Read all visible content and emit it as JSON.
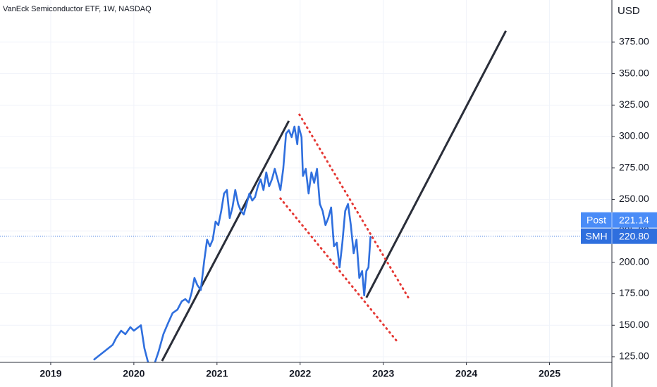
{
  "chart_data": {
    "type": "line",
    "title": "VanEck Semiconductor ETF, 1W, NASDAQ",
    "y_axis_label": "USD",
    "x": [
      2019.517,
      2019.746,
      2019.788,
      2019.847,
      2019.898,
      2019.958,
      2020.0,
      2020.085,
      2020.127,
      2020.169,
      2020.195,
      2020.254,
      2020.297,
      2020.356,
      2020.407,
      2020.466,
      2020.525,
      2020.576,
      2020.619,
      2020.661,
      2020.695,
      2020.729,
      2020.763,
      2020.805,
      2020.847,
      2020.881,
      2020.915,
      2020.949,
      2020.983,
      2021.017,
      2021.051,
      2021.085,
      2021.119,
      2021.153,
      2021.186,
      2021.22,
      2021.254,
      2021.288,
      2021.322,
      2021.356,
      2021.39,
      2021.424,
      2021.458,
      2021.492,
      2021.525,
      2021.559,
      2021.593,
      2021.627,
      2021.661,
      2021.695,
      2021.729,
      2021.763,
      2021.797,
      2021.831,
      2021.864,
      2021.898,
      2021.932,
      2021.966,
      2021.983,
      2022.017,
      2022.034,
      2022.068,
      2022.102,
      2022.136,
      2022.169,
      2022.203,
      2022.237,
      2022.271,
      2022.305,
      2022.339,
      2022.373,
      2022.407,
      2022.441,
      2022.475,
      2022.508,
      2022.542,
      2022.576,
      2022.61,
      2022.644,
      2022.678,
      2022.712,
      2022.746,
      2022.771,
      2022.797,
      2022.822,
      2022.847
    ],
    "series": [
      {
        "name": "SMH",
        "color": "#2f6fde",
        "values": [
          122.5,
          134.5,
          140.0,
          145.7,
          142.9,
          148.5,
          145.7,
          150.0,
          131.7,
          121.0,
          118.0,
          120.5,
          129.0,
          143.0,
          151.0,
          159.7,
          162.5,
          169.0,
          170.8,
          168.0,
          176.0,
          187.6,
          182.0,
          178.0,
          201.6,
          218.0,
          212.8,
          218.0,
          232.4,
          229.6,
          240.8,
          254.7,
          257.5,
          235.2,
          243.6,
          257.5,
          246.4,
          240.8,
          238.0,
          246.4,
          254.7,
          249.1,
          251.9,
          260.4,
          266.0,
          257.5,
          271.5,
          260.4,
          266.0,
          274.3,
          266.0,
          257.5,
          274.3,
          302.3,
          305.1,
          299.5,
          307.9,
          293.9,
          307.9,
          299.5,
          268.7,
          274.3,
          254.7,
          271.5,
          263.2,
          274.3,
          246.4,
          240.8,
          229.6,
          235.2,
          243.6,
          212.8,
          215.6,
          196.0,
          215.6,
          240.8,
          246.4,
          229.6,
          207.2,
          218.0,
          187.6,
          193.1,
          173.7,
          193.1,
          196.0,
          220.8
        ]
      }
    ],
    "drawings": [
      {
        "color": "#2a2e39",
        "style": "solid",
        "x": [
          2020.339,
          2021.864
        ],
        "y": [
          121.6,
          312.4
        ]
      },
      {
        "color": "#2a2e39",
        "style": "solid",
        "x": [
          2022.797,
          2024.475
        ],
        "y": [
          172.0,
          384.0
        ]
      },
      {
        "color": "#e53935",
        "style": "dotted",
        "x": [
          2021.992,
          2023.322
        ],
        "y": [
          317.4,
          169.7
        ]
      },
      {
        "color": "#e53935",
        "style": "dotted",
        "x": [
          2021.763,
          2023.178
        ],
        "y": [
          250.8,
          136.2
        ]
      }
    ],
    "price_line": {
      "value": 220.8,
      "color": "#2f6fde"
    },
    "price_labels": {
      "names": [
        "Post",
        "SMH"
      ],
      "values": [
        221.14,
        220.8
      ],
      "value_labels": [
        "221.14",
        "220.80"
      ],
      "colors": [
        "#4a8cf7",
        "#2f6fde"
      ]
    },
    "xlim": [
      2018.39,
      2025.75
    ],
    "xticks": [
      2019,
      2020,
      2021,
      2022,
      2023,
      2024,
      2025
    ],
    "ylim": [
      120.5,
      408.5
    ],
    "yticks": [
      {
        "value": 125,
        "label": "125.00"
      },
      {
        "value": 150,
        "label": "150.00"
      },
      {
        "value": 175,
        "label": "175.00"
      },
      {
        "value": 200,
        "label": "200.00"
      },
      {
        "value": 225,
        "label": "225.00"
      },
      {
        "value": 250,
        "label": "250.00"
      },
      {
        "value": 275,
        "label": "275.00"
      },
      {
        "value": 300,
        "label": "300.00"
      },
      {
        "value": 325,
        "label": "325.00"
      },
      {
        "value": 350,
        "label": "350.00"
      },
      {
        "value": 375,
        "label": "375.00"
      }
    ],
    "grid": true
  }
}
